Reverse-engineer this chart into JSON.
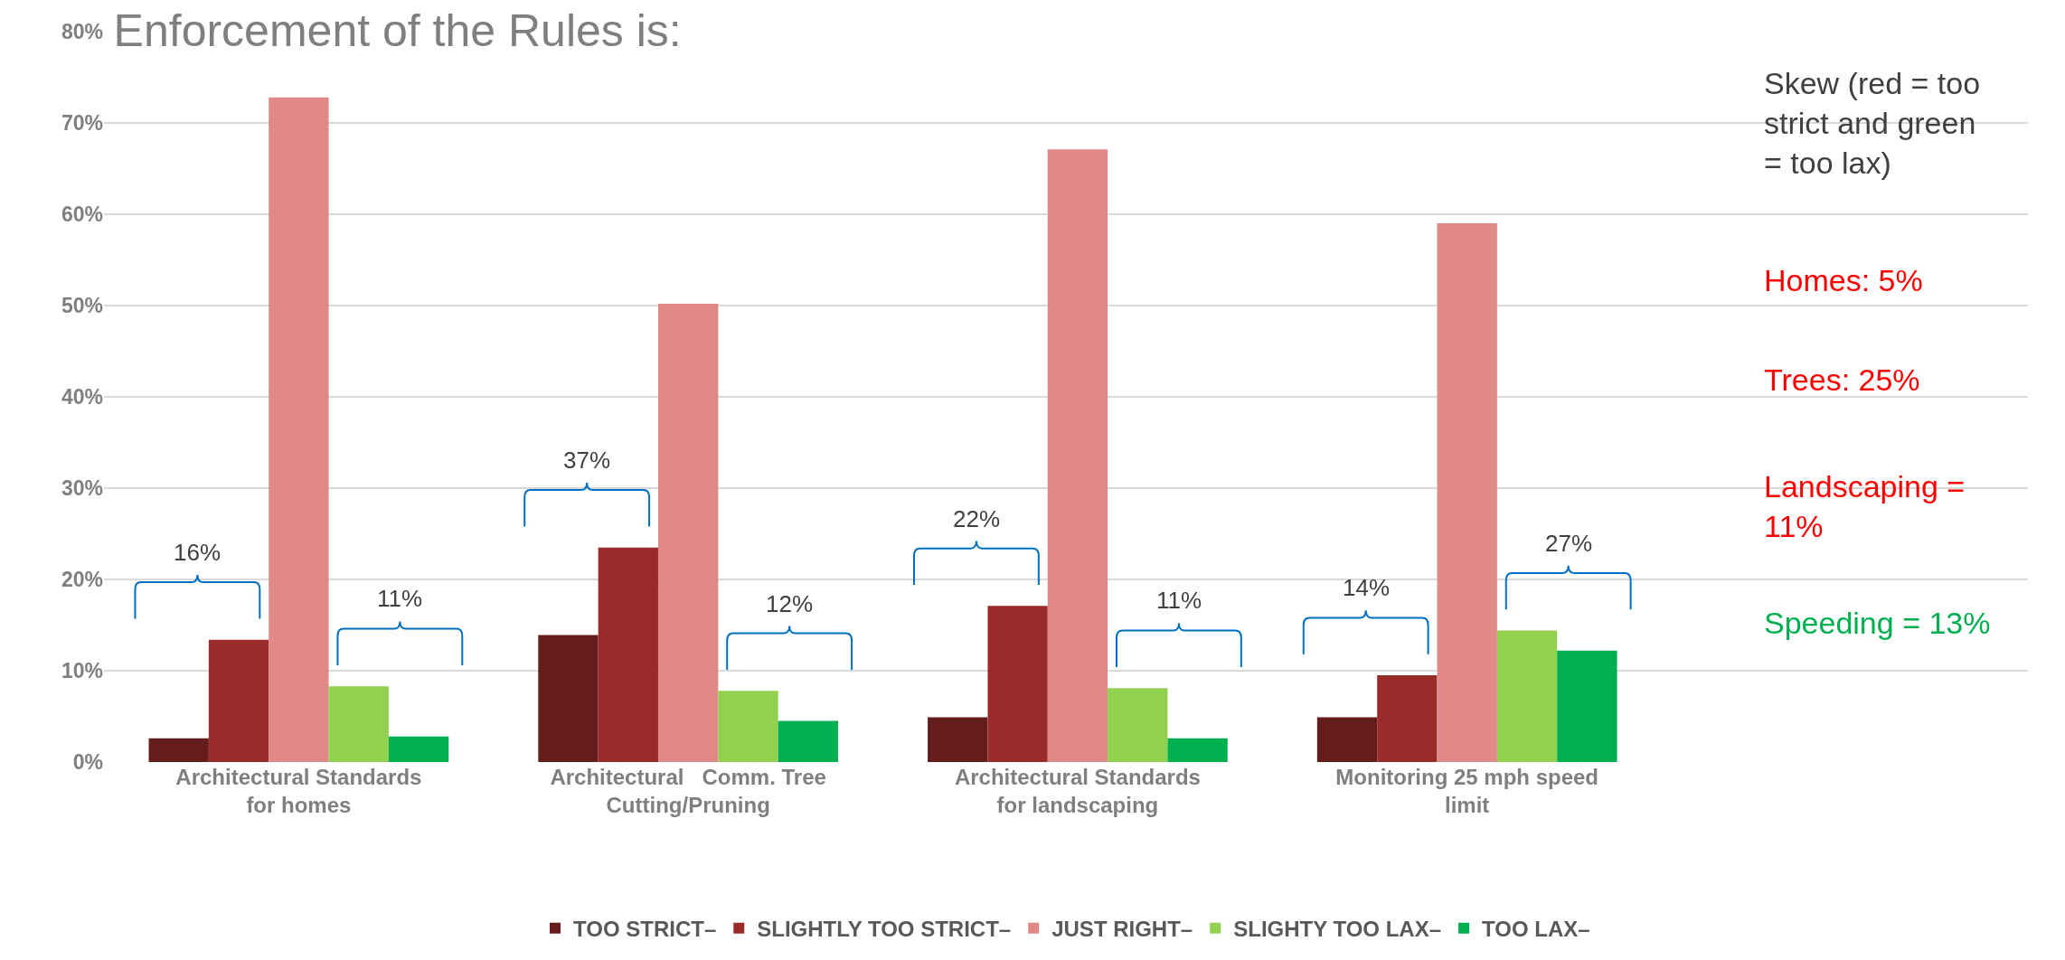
{
  "chart_data": {
    "type": "bar",
    "title": "Enforcement of the Rules is:",
    "categories": [
      "Architectural Standards\nfor homes",
      "Architectural   Comm. Tree\nCutting/Pruning",
      "Architectural Standards\nfor landscaping",
      "Monitoring 25 mph speed\nlimit"
    ],
    "series": [
      {
        "name": "TOO STRICT–",
        "color": "#641c1c",
        "values": [
          2.6,
          13.9,
          4.9,
          4.9
        ]
      },
      {
        "name": "SLIGHTLY TOO STRICT–",
        "color": "#9b2b2b",
        "values": [
          13.4,
          23.5,
          17.1,
          9.5
        ]
      },
      {
        "name": "JUST RIGHT–",
        "color": "#e08987",
        "values": [
          72.8,
          50.2,
          67.1,
          59.0
        ]
      },
      {
        "name": "SLIGHTY TOO LAX–",
        "color": "#92d050",
        "values": [
          8.3,
          7.8,
          8.1,
          14.4
        ]
      },
      {
        "name": "TOO LAX–",
        "color": "#00b050",
        "values": [
          2.8,
          4.5,
          2.6,
          12.2
        ]
      }
    ],
    "ylim": [
      0,
      80
    ],
    "yticks": [
      {
        "value": 0,
        "label": "0%"
      },
      {
        "value": 10,
        "label": "10%"
      },
      {
        "value": 20,
        "label": "20%"
      },
      {
        "value": 30,
        "label": "30%"
      },
      {
        "value": 40,
        "label": "40%"
      },
      {
        "value": 50,
        "label": "50%"
      },
      {
        "value": 60,
        "label": "60%"
      },
      {
        "value": 70,
        "label": "70%"
      },
      {
        "value": 80,
        "label": "80%"
      }
    ],
    "grid": "y",
    "legend": "bottom",
    "annotations": [
      "16%",
      "11%",
      "37%",
      "12%",
      "22%",
      "11%",
      "14%",
      "27%",
      "Skew (red = too\nstrict and green\n= too lax)",
      "Homes: 5%",
      "Trees: 25%",
      "Landscaping =\n11%",
      "Speeding = 13%"
    ]
  }
}
